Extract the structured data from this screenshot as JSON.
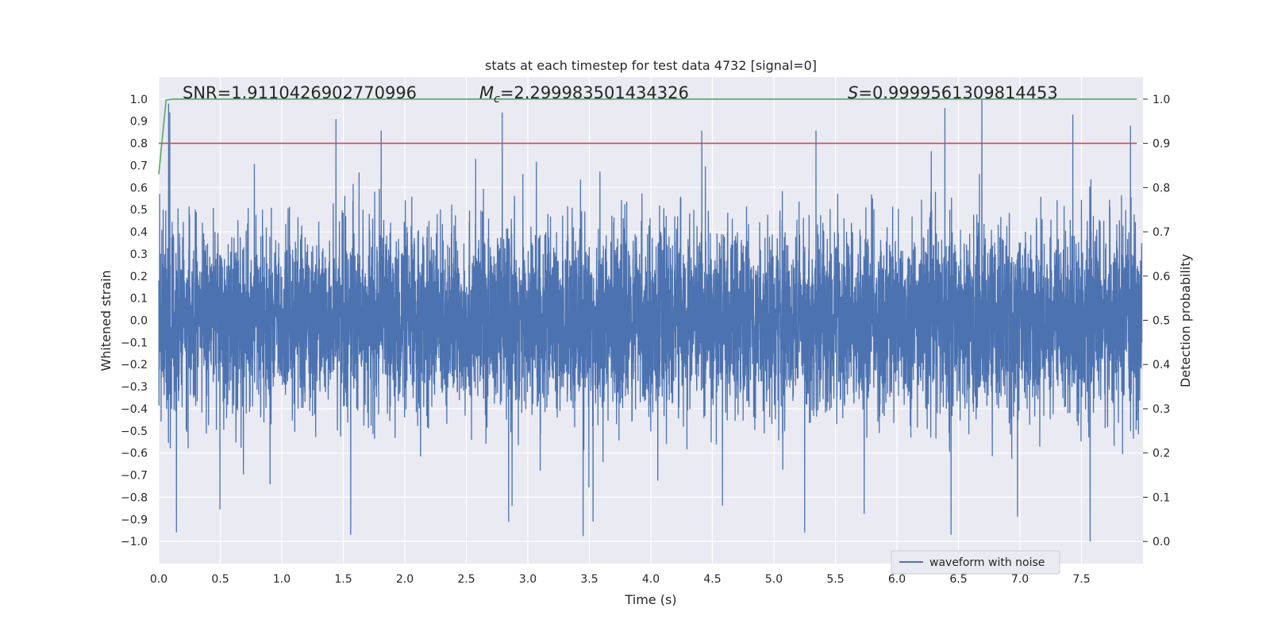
{
  "chart_data": {
    "type": "line",
    "title": "stats at each timestep for test data 4732 [signal=0]",
    "xlabel": "Time (s)",
    "ylabel": "Whitened strain",
    "y2label": "Detection probability",
    "xlim": [
      0.0,
      8.0
    ],
    "ylim": [
      -1.1,
      1.1
    ],
    "y2lim": [
      -0.05,
      1.05
    ],
    "xticks": [
      "0.0",
      "0.5",
      "1.0",
      "1.5",
      "2.0",
      "2.5",
      "3.0",
      "3.5",
      "4.0",
      "4.5",
      "5.0",
      "5.5",
      "6.0",
      "6.5",
      "7.0",
      "7.5"
    ],
    "yticks": [
      "1.0",
      "0.9",
      "0.8",
      "0.7",
      "0.6",
      "0.5",
      "0.4",
      "0.3",
      "0.2",
      "0.1",
      "0.0",
      "−0.1",
      "−0.2",
      "−0.3",
      "−0.4",
      "−0.5",
      "−0.6",
      "−0.7",
      "−0.8",
      "−0.9",
      "−1.0"
    ],
    "y2ticks": [
      "1.0",
      "0.9",
      "0.8",
      "0.7",
      "0.6",
      "0.5",
      "0.4",
      "0.3",
      "0.2",
      "0.1",
      "0.0"
    ],
    "grid": true,
    "legend": {
      "position": "lower-right",
      "entries": [
        {
          "label": "waveform with noise",
          "color": "#4c72b0"
        }
      ]
    },
    "annotations": {
      "snr": "SNR=1.9110426902770996",
      "mc_symbol": "M",
      "mc_sub": "c",
      "mc_value": "=2.299983501434326",
      "s_symbol": "S",
      "s_value": "=0.9999561309814453"
    },
    "series": [
      {
        "name": "waveform with noise",
        "axis": "left",
        "color": "#4c72b0",
        "note": "dense noise signal, amplitude roughly within [-0.97, 1.0]",
        "sample_peaks": [
          {
            "x": 0.09,
            "y": 0.94
          },
          {
            "x": 1.44,
            "y": 0.91
          },
          {
            "x": 6.69,
            "y": 1.0
          },
          {
            "x": 6.39,
            "y": 0.96
          },
          {
            "x": 7.43,
            "y": 0.93
          },
          {
            "x": 1.56,
            "y": -0.97
          },
          {
            "x": 7.57,
            "y": -1.0
          },
          {
            "x": 6.44,
            "y": -0.97
          },
          {
            "x": 3.53,
            "y": -0.91
          }
        ]
      },
      {
        "name": "detection threshold",
        "axis": "right",
        "color": "#c44e52",
        "x": [
          0.0,
          7.95
        ],
        "y": [
          0.9,
          0.9
        ]
      },
      {
        "name": "detection probability",
        "axis": "right",
        "color": "#55a868",
        "x": [
          0.0,
          0.06,
          0.12,
          0.5,
          7.95
        ],
        "y": [
          0.83,
          0.998,
          1.0,
          1.0,
          1.0
        ]
      }
    ]
  }
}
